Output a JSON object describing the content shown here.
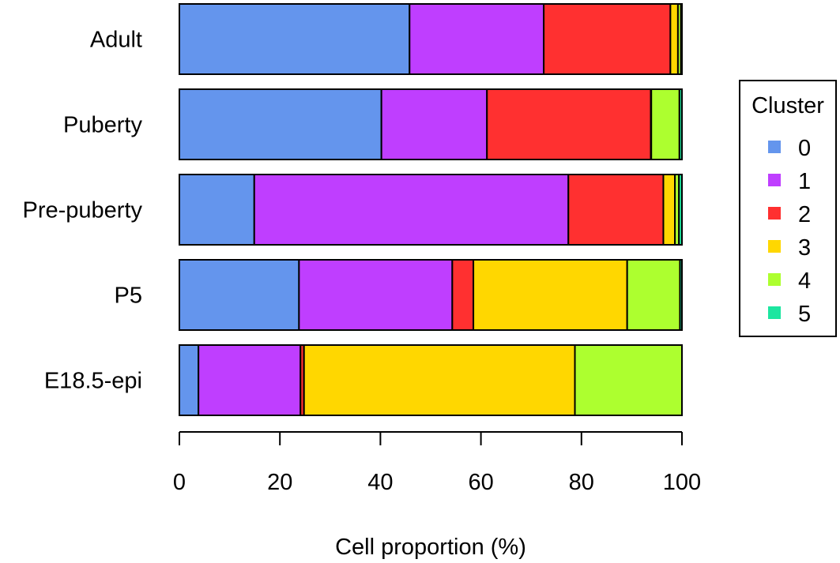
{
  "chart_data": {
    "type": "bar",
    "orientation": "horizontal",
    "stacked": true,
    "categories": [
      "Adult",
      "Puberty",
      "Pre-puberty",
      "P5",
      "E18.5-epi"
    ],
    "series": [
      {
        "name": "0",
        "color": "#6495ED",
        "values": [
          45.8,
          40.2,
          14.9,
          23.8,
          3.8
        ]
      },
      {
        "name": "1",
        "color": "#BF3EFF",
        "values": [
          26.7,
          21.0,
          62.5,
          30.5,
          20.3
        ]
      },
      {
        "name": "2",
        "color": "#FF3030",
        "values": [
          25.2,
          32.6,
          18.9,
          4.2,
          0.7
        ]
      },
      {
        "name": "3",
        "color": "#FFD700",
        "values": [
          1.5,
          0.1,
          2.3,
          30.6,
          53.9
        ]
      },
      {
        "name": "4",
        "color": "#ADFF2F",
        "values": [
          0.6,
          5.6,
          0.8,
          10.5,
          21.3
        ]
      },
      {
        "name": "5",
        "color": "#1CE6A0",
        "values": [
          0.2,
          0.5,
          0.6,
          0.4,
          0.0
        ]
      }
    ],
    "xlabel": "Cell proportion (%)",
    "ylabel": "",
    "xlim": [
      0,
      100
    ],
    "xticks": [
      0,
      20,
      40,
      60,
      80,
      100
    ],
    "grid": false,
    "legend": {
      "title": "Cluster",
      "position": "right"
    }
  }
}
